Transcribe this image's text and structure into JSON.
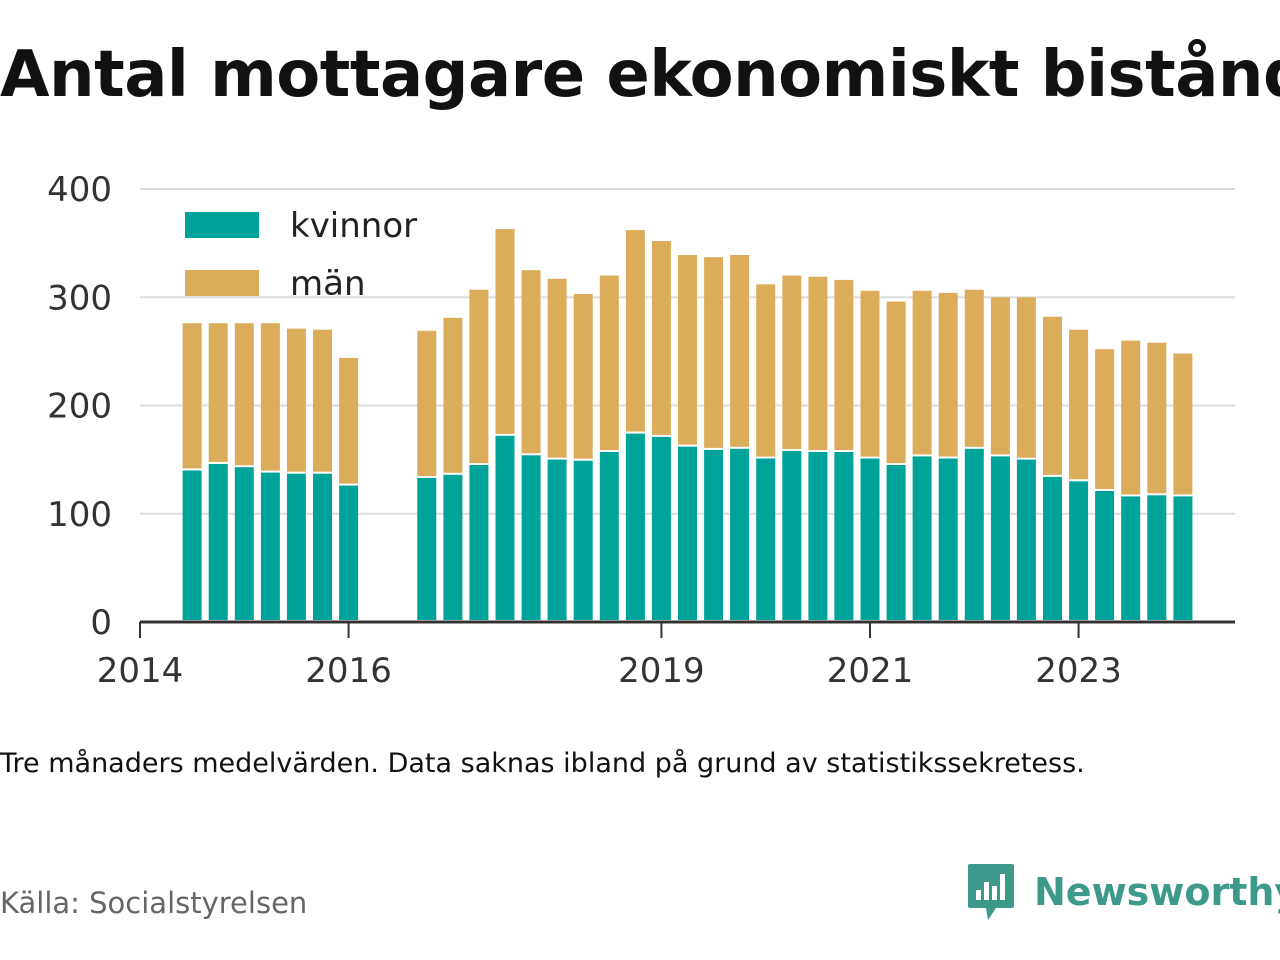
{
  "title": "Antal mottagare ekonomiskt bistånd",
  "note": "Tre månaders medelvärden. Data saknas ibland på grund av statistikssekretess.",
  "source": "Källa: Socialstyrelsen",
  "brand": {
    "name": "Newsworthy",
    "icon": "newsworthy-logo-icon",
    "color": "#3d9a8b"
  },
  "chart_data": {
    "type": "bar",
    "stacked": true,
    "x_axis": {
      "min": "2014-01",
      "max": "2024-07",
      "ticks": [
        "2014",
        "2016",
        "2019",
        "2021",
        "2023"
      ]
    },
    "y_axis": {
      "min": 0,
      "max": 400,
      "ticks": [
        "0",
        "100",
        "200",
        "300",
        "400"
      ]
    },
    "grid": true,
    "legend_position": "top-left",
    "categories": [
      "2014-07",
      "2014-10",
      "2015-01",
      "2015-04",
      "2015-07",
      "2015-10",
      "2016-01",
      "2016-07",
      "2016-10",
      "2017-01",
      "2017-04",
      "2017-07",
      "2017-10",
      "2018-01",
      "2018-04",
      "2018-07",
      "2018-10",
      "2019-01",
      "2019-04",
      "2019-07",
      "2019-10",
      "2020-01",
      "2020-04",
      "2020-07",
      "2020-10",
      "2021-01",
      "2021-04",
      "2021-07",
      "2021-10",
      "2022-01",
      "2022-04",
      "2022-07",
      "2022-10",
      "2023-01",
      "2023-04",
      "2023-07",
      "2023-10",
      "2024-01",
      "2024-04"
    ],
    "series": [
      {
        "name": "kvinnor",
        "color": "#00a39a",
        "values": [
          140,
          146,
          143,
          138,
          137,
          137,
          126,
          null,
          133,
          136,
          145,
          172,
          154,
          150,
          149,
          157,
          174,
          171,
          162,
          159,
          160,
          151,
          158,
          157,
          157,
          151,
          145,
          153,
          151,
          160,
          153,
          150,
          134,
          130,
          121,
          116,
          117,
          116,
          null
        ]
      },
      {
        "name": "män",
        "color": "#dbad5a",
        "values": [
          136,
          130,
          133,
          138,
          134,
          133,
          118,
          null,
          136,
          145,
          162,
          191,
          171,
          167,
          154,
          163,
          188,
          181,
          177,
          178,
          179,
          161,
          162,
          162,
          159,
          155,
          151,
          153,
          153,
          147,
          147,
          150,
          148,
          140,
          131,
          144,
          141,
          132,
          null
        ]
      }
    ]
  }
}
